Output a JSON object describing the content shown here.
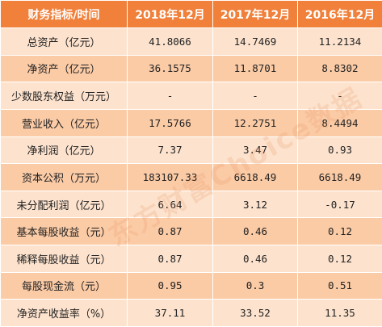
{
  "colors": {
    "header_bg": "#f0803a",
    "row_light": "#fde3ce",
    "row_dark": "#fbcba6",
    "header_text": "#ffffff"
  },
  "header": [
    "财务指标/时间",
    "2018年12月",
    "2017年12月",
    "2016年12月"
  ],
  "rows": [
    [
      "总资产（亿元）",
      "41.8066",
      "14.7469",
      "11.2134"
    ],
    [
      "净资产（亿元）",
      "36.1575",
      "11.8701",
      "8.8302"
    ],
    [
      "少数股东权益（万元）",
      "-",
      "-",
      "-"
    ],
    [
      "营业收入（亿元）",
      "17.5766",
      "12.2751",
      "8.4494"
    ],
    [
      "净利润（亿元）",
      "7.37",
      "3.47",
      "0.93"
    ],
    [
      "资本公积（万元）",
      "183107.33",
      "6618.49",
      "6618.49"
    ],
    [
      "未分配利润（亿元）",
      "6.64",
      "3.12",
      "-0.17"
    ],
    [
      "基本每股收益（元）",
      "0.87",
      "0.46",
      "0.12"
    ],
    [
      "稀释每股收益（元）",
      "0.87",
      "0.46",
      "0.12"
    ],
    [
      "每股现金流（元）",
      "0.95",
      "0.3",
      "0.51"
    ],
    [
      "净资产收益率（%）",
      "37.11",
      "33.52",
      "11.35"
    ]
  ],
  "watermark": "东方财富Choice数据"
}
